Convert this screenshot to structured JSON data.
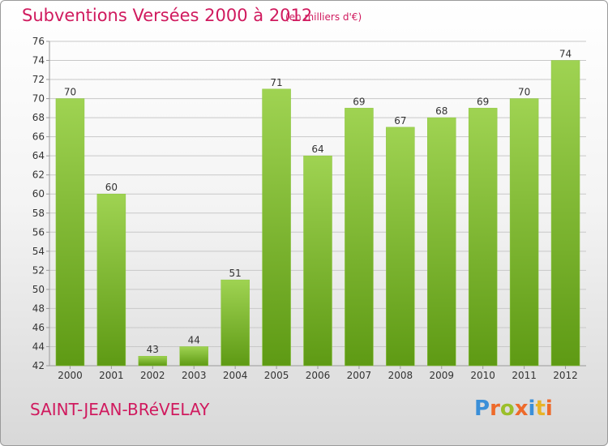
{
  "header": {
    "title": "Subventions Versées 2000 à 2012",
    "subtitle": "(en milliers d'€)"
  },
  "footer": {
    "place": "SAINT-JEAN-BRéVELAY",
    "logo_text": "Proxiti"
  },
  "colors": {
    "title": "#d01a5e",
    "bar_light": "#9fd352",
    "bar_dark": "#5e9a14",
    "grid": "#c8c8c8"
  },
  "chart_data": {
    "type": "bar",
    "categories": [
      "2000",
      "2001",
      "2002",
      "2003",
      "2004",
      "2005",
      "2006",
      "2007",
      "2008",
      "2009",
      "2010",
      "2011",
      "2012"
    ],
    "values": [
      70,
      60,
      43,
      44,
      51,
      71,
      64,
      69,
      67,
      68,
      69,
      70,
      74
    ],
    "ylim": [
      42,
      76
    ],
    "yticks": [
      42,
      44,
      46,
      48,
      50,
      52,
      54,
      56,
      58,
      60,
      62,
      64,
      66,
      68,
      70,
      72,
      74,
      76
    ],
    "grid": true,
    "title": "Subventions Versées 2000 à 2012",
    "xlabel": "",
    "ylabel": ""
  }
}
